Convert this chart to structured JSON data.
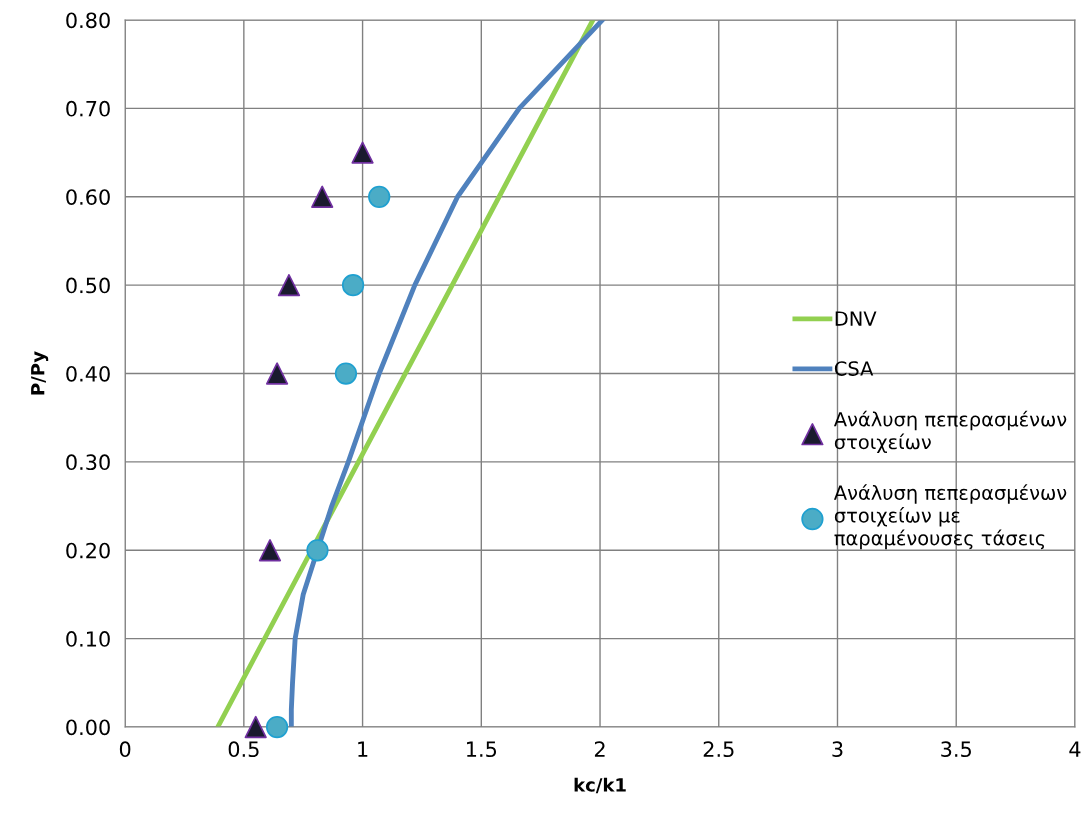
{
  "chart_data": {
    "type": "line",
    "xlabel": "kc/k1",
    "ylabel": "P/Py",
    "xlim": [
      0,
      4
    ],
    "xticks": [
      0,
      0.5,
      1,
      1.5,
      2,
      2.5,
      3,
      3.5,
      4
    ],
    "ylim": [
      0,
      0.8
    ],
    "yticks": [
      {
        "value": 0,
        "label": "0.00"
      },
      {
        "value": 0.1,
        "label": "0.10"
      },
      {
        "value": 0.2,
        "label": "0.20"
      },
      {
        "value": 0.3,
        "label": "0.30"
      },
      {
        "value": 0.4,
        "label": "0.40"
      },
      {
        "value": 0.5,
        "label": "0.50"
      },
      {
        "value": 0.6,
        "label": "0.60"
      },
      {
        "value": 0.7,
        "label": "0.70"
      },
      {
        "value": 0.8,
        "label": "0.80"
      }
    ],
    "grid": true,
    "legend": "right",
    "series": [
      {
        "name": "DNV",
        "color": "#92d050",
        "marker": "none",
        "x": [
          0.39,
          1.97
        ],
        "values": [
          0,
          0.8
        ]
      },
      {
        "name": "CSA",
        "color": "#4f81bd",
        "marker": "none",
        "x": [
          0.7,
          0.7,
          0.705,
          0.716,
          0.75,
          0.81,
          0.87,
          0.94,
          1.07,
          1.22,
          1.4,
          1.66,
          2.01
        ],
        "values": [
          0,
          0.02,
          0.05,
          0.1,
          0.15,
          0.2,
          0.25,
          0.3,
          0.4,
          0.5,
          0.6,
          0.7,
          0.8
        ]
      },
      {
        "name": "Ανάλυση πεπερασμένων\nστοιχείων",
        "type": "scatter",
        "color": "#1a1a2e",
        "marker": "triangle",
        "x": [
          0.55,
          0.61,
          0.64,
          0.69,
          0.83,
          1.0
        ],
        "values": [
          0,
          0.2,
          0.4,
          0.5,
          0.6,
          0.65
        ]
      },
      {
        "name": "Ανάλυση πεπερασμένων\nστοιχείων με\nπαραμένουσες τάσεις",
        "type": "scatter",
        "color": "#4bacc6",
        "marker": "circle",
        "x": [
          0.64,
          0.81,
          0.93,
          0.96,
          1.07
        ],
        "values": [
          0,
          0.2,
          0.4,
          0.5,
          0.6
        ]
      }
    ]
  }
}
